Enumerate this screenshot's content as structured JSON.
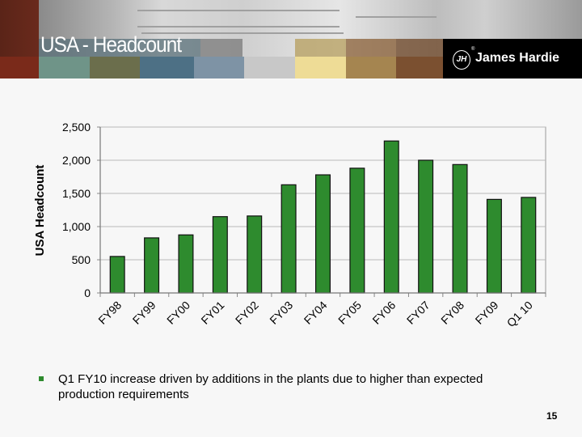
{
  "slide": {
    "title": "USA - Headcount",
    "logo_text": "James Hardie",
    "logo_mark": "JH",
    "page_number": "15",
    "bullet": "Q1 FY10 increase driven by additions in the plants due to higher than expected production requirements"
  },
  "colors": {
    "bar": "#2e8b2e",
    "bullet": "#2e8b2e",
    "stripes": [
      "#7a2a1a",
      "#6f9488",
      "#6b6e4c",
      "#4d7085",
      "#7e93a5",
      "#c8c8c8",
      "#eedc96",
      "#a58550",
      "#7b5030"
    ]
  },
  "chart_data": {
    "type": "bar",
    "title": "",
    "xlabel": "",
    "ylabel": "USA Headcount",
    "ylim": [
      0,
      2500
    ],
    "yticks": [
      0,
      500,
      1000,
      1500,
      2000,
      2500
    ],
    "ytick_labels": [
      "0",
      "500",
      "1,000",
      "1,500",
      "2,000",
      "2,500"
    ],
    "grid": true,
    "categories": [
      "FY98",
      "FY99",
      "FY00",
      "FY01",
      "FY02",
      "FY03",
      "FY04",
      "FY05",
      "FY06",
      "FY07",
      "FY08",
      "FY09",
      "Q1 10"
    ],
    "values": [
      550,
      830,
      875,
      1150,
      1160,
      1630,
      1780,
      1880,
      2290,
      2000,
      1935,
      1410,
      1440
    ]
  }
}
